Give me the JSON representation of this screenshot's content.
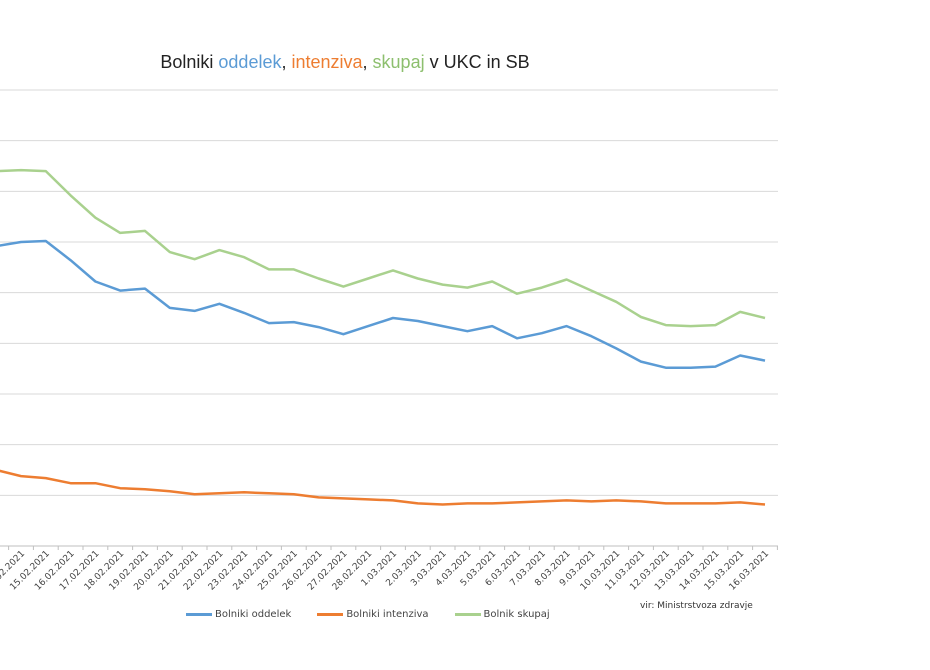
{
  "chart_data": {
    "type": "line",
    "title_parts": [
      "Bolniki ",
      "oddelek",
      ", ",
      "intenziva",
      ", ",
      "skupaj",
      " v UKC in SB"
    ],
    "xlabel": "",
    "ylabel": "",
    "ylim": [
      0,
      450
    ],
    "grid": true,
    "legend_position": "bottom",
    "source": "vir: Ministrstvoza zdravje",
    "categories": [
      "13.02.2021",
      "14.02.2021",
      "15.02.2021",
      "16.02.2021",
      "17.02.2021",
      "18.02.2021",
      "19.02.2021",
      "20.02.2021",
      "21.02.2021",
      "22.02.2021",
      "23.02.2021",
      "24.02.2021",
      "25.02.2021",
      "26.02.2021",
      "27.02.2021",
      "28.02.2021",
      "1.03.2021",
      "2.03.2021",
      "3.03.2021",
      "4.03.2021",
      "5.03.2021",
      "6.03.2021",
      "7.03.2021",
      "8.03.2021",
      "9.03.2021",
      "10.03.2021",
      "11.03.2021",
      "12.03.2021",
      "13.03.2021",
      "14.03.2021",
      "15.03.2021",
      "16.03.2021"
    ],
    "series": [
      {
        "name": "Bolniki oddelek",
        "color": "#5B9BD5",
        "values": [
          296,
          300,
          301,
          282,
          261,
          252,
          254,
          235,
          232,
          239,
          230,
          220,
          221,
          216,
          209,
          217,
          225,
          222,
          217,
          212,
          217,
          205,
          210,
          217,
          207,
          195,
          182,
          176,
          176,
          177,
          188,
          183
        ]
      },
      {
        "name": "Bolniki intenziva",
        "color": "#ED7D31",
        "values": [
          75,
          69,
          67,
          62,
          62,
          57,
          56,
          54,
          51,
          52,
          53,
          52,
          51,
          48,
          47,
          46,
          45,
          42,
          41,
          42,
          42,
          43,
          44,
          45,
          44,
          45,
          44,
          42,
          42,
          42,
          43,
          41
        ]
      },
      {
        "name": "Bolnik skupaj",
        "color": "#A9D18E",
        "values": [
          370,
          371,
          370,
          346,
          324,
          309,
          311,
          290,
          283,
          292,
          285,
          273,
          273,
          264,
          256,
          264,
          272,
          264,
          258,
          255,
          261,
          249,
          255,
          263,
          252,
          241,
          226,
          218,
          217,
          218,
          231,
          225
        ]
      }
    ]
  }
}
